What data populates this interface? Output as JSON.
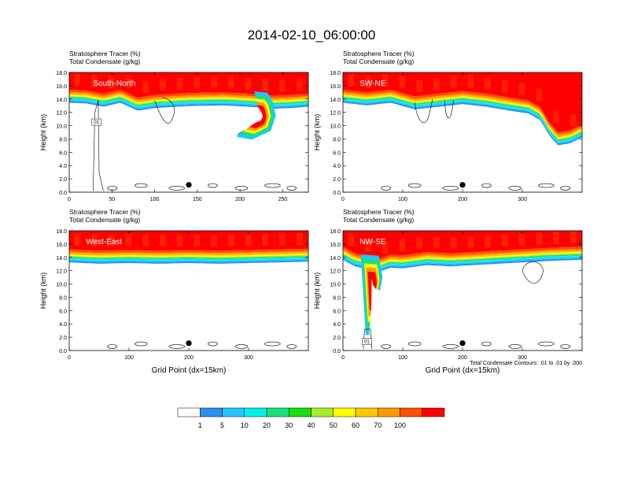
{
  "title": "2014-02-10_06:00:00",
  "footnote": "Total Condensate Contours: .01 to .01 by .000",
  "colorbar": {
    "labels": [
      "1",
      "5",
      "10",
      "20",
      "30",
      "40",
      "50",
      "60",
      "70",
      "100"
    ],
    "colors": [
      "#ffffff",
      "#2f8ef0",
      "#1ec8ff",
      "#00f2ee",
      "#18e07a",
      "#18e010",
      "#a8ec28",
      "#ffff00",
      "#ffc800",
      "#ff9a00",
      "#ff5000",
      "#ff0000"
    ]
  },
  "chart_data": [
    {
      "type": "heatmap",
      "name": "south-north",
      "label": "South-North",
      "line1": "Stratosphere Tracer   (%)",
      "line2": "Total Condensate   (g/kg)",
      "ylabel": "Height (km)",
      "xlabel": "",
      "xlim": [
        0,
        280
      ],
      "ylim": [
        0,
        18
      ],
      "xticks": [
        0,
        50,
        100,
        150,
        200,
        250
      ],
      "yticks": [
        0,
        2,
        4,
        6,
        8,
        10,
        12,
        14,
        16,
        18
      ],
      "ytick_labels": [
        "0.0",
        "2.0",
        "4.0",
        "6.0",
        "8.0",
        "10.0",
        "12.0",
        "14.0",
        "16.0",
        "18.0"
      ],
      "tracer_interface_km": [
        [
          0,
          15.4
        ],
        [
          20,
          15.3
        ],
        [
          40,
          14.8
        ],
        [
          60,
          15.4
        ],
        [
          80,
          14.2
        ],
        [
          100,
          14.6
        ],
        [
          140,
          14.9
        ],
        [
          180,
          15.0
        ],
        [
          210,
          14.8
        ],
        [
          240,
          14.5
        ],
        [
          260,
          14.6
        ],
        [
          280,
          14.8
        ]
      ],
      "intrusion": [
        [
          216,
          14.8
        ],
        [
          228,
          12.8
        ],
        [
          232,
          11.5
        ],
        [
          226,
          10.4
        ],
        [
          212,
          9.8
        ],
        [
          200,
          9.0
        ],
        [
          196,
          8.6
        ],
        [
          214,
          8.2
        ],
        [
          236,
          9.4
        ],
        [
          242,
          11.5
        ],
        [
          238,
          13.5
        ],
        [
          232,
          14.6
        ]
      ],
      "marker_x": 140,
      "contour_label": "01"
    },
    {
      "type": "heatmap",
      "name": "sw-ne",
      "label": "SW-NE",
      "line1": "Stratosphere Tracer   (%)",
      "line2": "Total Condensate   (g/kg)",
      "ylabel": "Height (km)",
      "xlabel": "",
      "xlim": [
        0,
        400
      ],
      "ylim": [
        0,
        18
      ],
      "xticks": [
        0,
        100,
        200,
        300
      ],
      "yticks": [
        0,
        2,
        4,
        6,
        8,
        10,
        12,
        14,
        16,
        18
      ],
      "ytick_labels": [
        "0.0",
        "2.0",
        "4.0",
        "6.0",
        "8.0",
        "10.0",
        "12.0",
        "14.0",
        "16.0",
        "18.0"
      ],
      "tracer_interface_km": [
        [
          0,
          15.4
        ],
        [
          40,
          15.0
        ],
        [
          80,
          15.4
        ],
        [
          120,
          14.4
        ],
        [
          160,
          14.8
        ],
        [
          200,
          15.2
        ],
        [
          240,
          14.8
        ],
        [
          280,
          14.2
        ],
        [
          310,
          13.8
        ],
        [
          330,
          12.8
        ],
        [
          345,
          10.5
        ],
        [
          360,
          9.0
        ],
        [
          380,
          9.3
        ],
        [
          400,
          10.2
        ]
      ],
      "intrusion": [],
      "marker_x": 200,
      "contour_label": ""
    },
    {
      "type": "heatmap",
      "name": "west-east",
      "label": "West-East",
      "line1": "Stratosphere Tracer   (%)",
      "line2": "Total Condensate   (g/kg)",
      "ylabel": "Height (km)",
      "xlabel": "Grid Point (dx=15km)",
      "xlim": [
        0,
        400
      ],
      "ylim": [
        0,
        18
      ],
      "xticks": [
        0,
        100,
        200,
        300
      ],
      "yticks": [
        0,
        2,
        4,
        6,
        8,
        10,
        12,
        14,
        16,
        18
      ],
      "ytick_labels": [
        "0.0",
        "2.0",
        "4.0",
        "6.0",
        "8.0",
        "10.0",
        "12.0",
        "14.0",
        "16.0",
        "18.0"
      ],
      "tracer_interface_km": [
        [
          0,
          15.2
        ],
        [
          50,
          15.0
        ],
        [
          100,
          15.1
        ],
        [
          150,
          15.0
        ],
        [
          200,
          15.1
        ],
        [
          250,
          15.0
        ],
        [
          300,
          15.1
        ],
        [
          350,
          15.2
        ],
        [
          400,
          15.3
        ]
      ],
      "intrusion": [],
      "marker_x": 200,
      "contour_label": ""
    },
    {
      "type": "heatmap",
      "name": "nw-se",
      "label": "NW-SE",
      "line1": "Stratosphere Tracer   (%)",
      "line2": "Total Condensate   (g/kg)",
      "ylabel": "Height (km)",
      "xlabel": "Grid Point (dx=15km)",
      "xlim": [
        0,
        400
      ],
      "ylim": [
        0,
        18
      ],
      "xticks": [
        0,
        100,
        200,
        300
      ],
      "yticks": [
        0,
        2,
        4,
        6,
        8,
        10,
        12,
        14,
        16,
        18
      ],
      "ytick_labels": [
        "0.0",
        "2.0",
        "4.0",
        "6.0",
        "8.0",
        "10.0",
        "12.0",
        "14.0",
        "16.0",
        "18.0"
      ],
      "tracer_interface_km": [
        [
          0,
          15.6
        ],
        [
          20,
          14.6
        ],
        [
          40,
          14.2
        ],
        [
          60,
          13.8
        ],
        [
          80,
          14.4
        ],
        [
          100,
          14.3
        ],
        [
          140,
          14.8
        ],
        [
          180,
          14.6
        ],
        [
          220,
          14.8
        ],
        [
          260,
          15.0
        ],
        [
          300,
          15.2
        ],
        [
          340,
          15.4
        ],
        [
          400,
          15.6
        ]
      ],
      "intrusion": [
        [
          30,
          14.0
        ],
        [
          38,
          3.0
        ],
        [
          44,
          3.0
        ],
        [
          46,
          12.0
        ],
        [
          52,
          10.0
        ],
        [
          62,
          9.0
        ],
        [
          66,
          11.0
        ],
        [
          60,
          13.8
        ]
      ],
      "marker_x": 200,
      "contour_label": "01"
    }
  ]
}
